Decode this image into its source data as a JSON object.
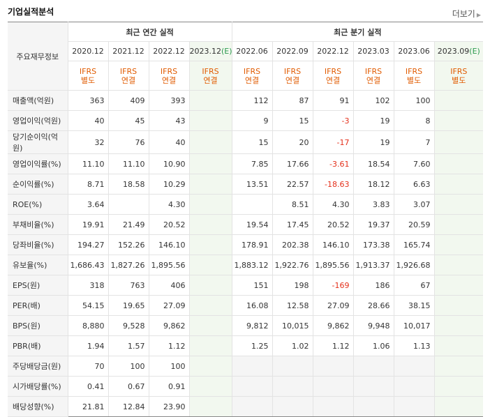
{
  "section_title": "기업실적분석",
  "more_label": "더보기",
  "table": {
    "corner_label": "주요재무정보",
    "annual_header": "최근 연간 실적",
    "quarter_header": "최근 분기 실적",
    "columns": [
      {
        "period": "2020.12",
        "est": "",
        "ifrs1": "IFRS",
        "ifrs2": "별도"
      },
      {
        "period": "2021.12",
        "est": "",
        "ifrs1": "IFRS",
        "ifrs2": "연결"
      },
      {
        "period": "2022.12",
        "est": "",
        "ifrs1": "IFRS",
        "ifrs2": "연결"
      },
      {
        "period": "2023.12",
        "est": "(E)",
        "ifrs1": "IFRS",
        "ifrs2": "연결"
      },
      {
        "period": "2022.06",
        "est": "",
        "ifrs1": "IFRS",
        "ifrs2": "연결"
      },
      {
        "period": "2022.09",
        "est": "",
        "ifrs1": "IFRS",
        "ifrs2": "연결"
      },
      {
        "period": "2022.12",
        "est": "",
        "ifrs1": "IFRS",
        "ifrs2": "연결"
      },
      {
        "period": "2023.03",
        "est": "",
        "ifrs1": "IFRS",
        "ifrs2": "연결"
      },
      {
        "period": "2023.06",
        "est": "",
        "ifrs1": "IFRS",
        "ifrs2": "별도"
      },
      {
        "period": "2023.09",
        "est": "(E)",
        "ifrs1": "IFRS",
        "ifrs2": "별도"
      }
    ],
    "rows": [
      {
        "label": "매출액(억원)",
        "values": [
          "363",
          "409",
          "393",
          "",
          "112",
          "87",
          "91",
          "102",
          "100",
          ""
        ]
      },
      {
        "label": "영업이익(억원)",
        "values": [
          "40",
          "45",
          "43",
          "",
          "9",
          "15",
          "-3",
          "19",
          "8",
          ""
        ]
      },
      {
        "label": "당기순이익(억원)",
        "values": [
          "32",
          "76",
          "40",
          "",
          "15",
          "20",
          "-17",
          "19",
          "7",
          ""
        ]
      },
      {
        "label": "영업이익률(%)",
        "values": [
          "11.10",
          "11.10",
          "10.90",
          "",
          "7.85",
          "17.66",
          "-3.61",
          "18.54",
          "7.60",
          ""
        ]
      },
      {
        "label": "순이익률(%)",
        "values": [
          "8.71",
          "18.58",
          "10.29",
          "",
          "13.51",
          "22.57",
          "-18.63",
          "18.12",
          "6.63",
          ""
        ]
      },
      {
        "label": "ROE(%)",
        "values": [
          "3.64",
          "",
          "4.30",
          "",
          "",
          "8.51",
          "4.30",
          "3.83",
          "3.07",
          ""
        ]
      },
      {
        "label": "부채비율(%)",
        "values": [
          "19.91",
          "21.49",
          "20.52",
          "",
          "19.54",
          "17.45",
          "20.52",
          "19.37",
          "20.59",
          ""
        ]
      },
      {
        "label": "당좌비율(%)",
        "values": [
          "194.27",
          "152.26",
          "146.10",
          "",
          "178.91",
          "202.38",
          "146.10",
          "173.38",
          "165.74",
          ""
        ]
      },
      {
        "label": "유보율(%)",
        "values": [
          "1,686.43",
          "1,827.26",
          "1,895.56",
          "",
          "1,883.12",
          "1,922.76",
          "1,895.56",
          "1,913.37",
          "1,926.68",
          ""
        ]
      },
      {
        "label": "EPS(원)",
        "values": [
          "318",
          "763",
          "406",
          "",
          "151",
          "198",
          "-169",
          "186",
          "67",
          ""
        ]
      },
      {
        "label": "PER(배)",
        "values": [
          "54.15",
          "19.65",
          "27.09",
          "",
          "16.08",
          "12.58",
          "27.09",
          "28.66",
          "38.15",
          ""
        ]
      },
      {
        "label": "BPS(원)",
        "values": [
          "8,880",
          "9,528",
          "9,862",
          "",
          "9,812",
          "10,015",
          "9,862",
          "9,948",
          "10,017",
          ""
        ]
      },
      {
        "label": "PBR(배)",
        "values": [
          "1.94",
          "1.57",
          "1.12",
          "",
          "1.25",
          "1.02",
          "1.12",
          "1.06",
          "1.13",
          ""
        ]
      },
      {
        "label": "주당배당금(원)",
        "values": [
          "70",
          "100",
          "100",
          "",
          "",
          "",
          "",
          "",
          "",
          ""
        ]
      },
      {
        "label": "시가배당률(%)",
        "values": [
          "0.41",
          "0.67",
          "0.91",
          "",
          "",
          "",
          "",
          "",
          "",
          ""
        ]
      },
      {
        "label": "배당성향(%)",
        "values": [
          "21.81",
          "12.84",
          "23.90",
          "",
          "",
          "",
          "",
          "",
          "",
          ""
        ]
      }
    ]
  },
  "colors": {
    "ifrs": "#e15b00",
    "estimate_bg": "#f2f8ef",
    "negative": "#e4301b",
    "estimate_tag": "#2c9a4e"
  }
}
